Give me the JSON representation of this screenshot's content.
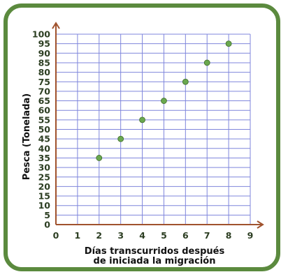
{
  "colors": {
    "frame": "#5b8a3e",
    "grid": "#7f86dc",
    "axis": "#a0522d",
    "point": "#6aa84f",
    "point_stroke": "#3e6b2b",
    "tick_text": "#2c3e22"
  },
  "chart_data": {
    "type": "scatter",
    "title": "",
    "xlabel_line1": "Días transcurridos después",
    "xlabel_line2": "de iniciada la migración",
    "ylabel": "Pesca (Tonelada)",
    "xlim": [
      0,
      9
    ],
    "ylim": [
      0,
      100
    ],
    "x_ticks": [
      0,
      1,
      2,
      3,
      4,
      5,
      6,
      7,
      8,
      9
    ],
    "y_ticks": [
      0,
      5,
      10,
      15,
      20,
      25,
      30,
      35,
      40,
      45,
      50,
      55,
      60,
      65,
      70,
      75,
      80,
      85,
      90,
      95,
      100
    ],
    "grid": true,
    "points": [
      {
        "x": 2,
        "y": 35
      },
      {
        "x": 3,
        "y": 45
      },
      {
        "x": 4,
        "y": 55
      },
      {
        "x": 5,
        "y": 65
      },
      {
        "x": 6,
        "y": 75
      },
      {
        "x": 7,
        "y": 85
      },
      {
        "x": 8,
        "y": 95
      }
    ]
  }
}
